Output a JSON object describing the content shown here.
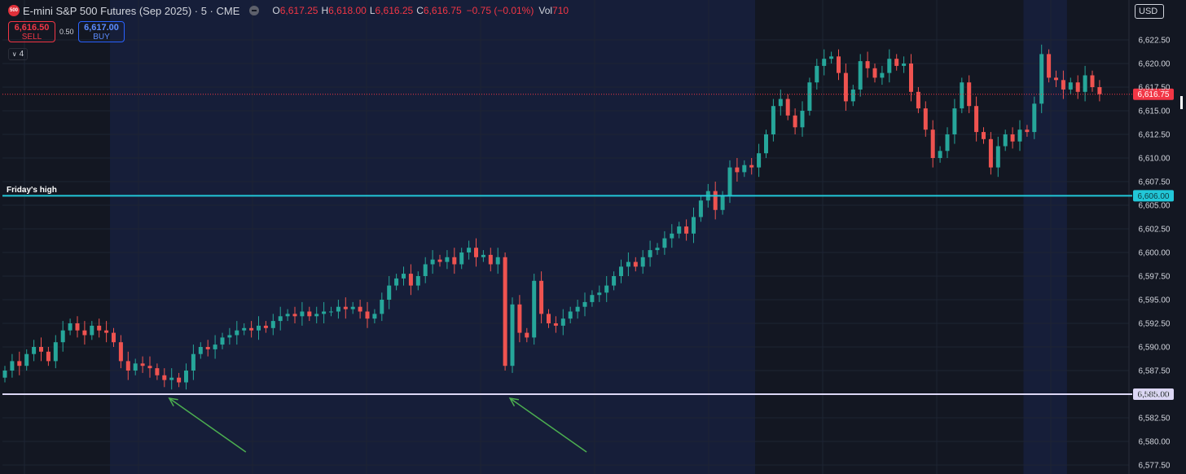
{
  "header": {
    "logo_text": "500",
    "title": "E-mini S&P 500 Futures (Sep 2025) · 5 · CME",
    "ohlc": {
      "open_label": "O",
      "open": "6,617.25",
      "high_label": "H",
      "high": "6,618.00",
      "low_label": "L",
      "low": "6,616.25",
      "close_label": "C",
      "close": "6,616.75",
      "change": "−0.75 (−0.01%)",
      "vol_label": "Vol",
      "vol": "710"
    }
  },
  "trade": {
    "sell_price": "6,616.50",
    "sell_label": "SELL",
    "spread": "0.50",
    "buy_price": "6,617.00",
    "buy_label": "BUY"
  },
  "indicator_count": "4",
  "currency": "USD",
  "colors": {
    "background": "#131722",
    "session_band": "#161e39",
    "up": "#26a69a",
    "down": "#ef5350",
    "friday_high_line": "#22c7d8",
    "support_line": "#dcd7f5",
    "arrow": "#4caf50",
    "last_price": "#f23645"
  },
  "chart_data": {
    "type": "candlestick",
    "yaxis": {
      "range": [
        6576.5,
        6624.5
      ],
      "ticks": [
        "6,622.50",
        "6,620.00",
        "6,617.50",
        "6,615.00",
        "6,612.50",
        "6,610.00",
        "6,607.50",
        "6,605.00",
        "6,602.50",
        "6,600.00",
        "6,597.50",
        "6,595.00",
        "6,592.50",
        "6,590.00",
        "6,587.50",
        "6,585.00",
        "6,582.50",
        "6,580.00",
        "6,577.50"
      ]
    },
    "horizontal_lines": [
      {
        "label": "Friday's high",
        "value": 6606.0,
        "tag": "6,606.00"
      },
      {
        "label": "",
        "value": 6585.0,
        "tag": "6,585.00"
      }
    ],
    "last_price": {
      "value": 6616.75,
      "tag": "6,616.75"
    },
    "closes": [
      6587.5,
      6588.5,
      6588.0,
      6589.25,
      6590.0,
      6589.5,
      6588.5,
      6590.5,
      6591.75,
      6592.5,
      6591.75,
      6591.25,
      6592.25,
      6591.75,
      6591.5,
      6590.5,
      6588.5,
      6587.5,
      6588.25,
      6588.0,
      6587.75,
      6587.0,
      6586.5,
      6586.75,
      6586.25,
      6587.5,
      6589.25,
      6590.0,
      6589.75,
      6590.25,
      6591.0,
      6591.25,
      6591.75,
      6592.0,
      6591.75,
      6592.25,
      6592.0,
      6592.75,
      6593.25,
      6593.5,
      6593.25,
      6593.75,
      6593.25,
      6593.5,
      6593.75,
      6593.75,
      6594.25,
      6594.0,
      6594.25,
      6593.75,
      6593.0,
      6593.5,
      6595.0,
      6596.5,
      6597.25,
      6597.75,
      6596.5,
      6597.5,
      6598.75,
      6599.25,
      6599.0,
      6599.5,
      6598.75,
      6600.0,
      6600.5,
      6599.5,
      6599.75,
      6598.75,
      6599.5,
      6588.0,
      6594.5,
      6591.5,
      6591.0,
      6597.0,
      6593.5,
      6592.5,
      6592.25,
      6593.0,
      6593.75,
      6594.25,
      6594.75,
      6595.5,
      6595.75,
      6596.5,
      6597.5,
      6598.5,
      6599.0,
      6598.5,
      6599.5,
      6600.25,
      6600.5,
      6601.5,
      6602.0,
      6602.75,
      6602.0,
      6603.75,
      6605.5,
      6606.5,
      6604.5,
      6606.0,
      6609.0,
      6608.5,
      6609.25,
      6609.0,
      6610.5,
      6612.5,
      6615.5,
      6616.25,
      6614.5,
      6613.25,
      6615.0,
      6618.0,
      6619.75,
      6620.5,
      6620.75,
      6619.0,
      6616.0,
      6617.25,
      6620.25,
      6619.5,
      6618.5,
      6619.0,
      6620.5,
      6619.75,
      6620.0,
      6617.0,
      6615.25,
      6613.0,
      6610.0,
      6610.75,
      6612.5,
      6615.25,
      6618.0,
      6615.5,
      6612.75,
      6612.0,
      6609.0,
      6611.25,
      6612.5,
      6611.75,
      6613.0,
      6612.75,
      6615.75,
      6621.0,
      6618.5,
      6618.25,
      6617.25,
      6618.0,
      6617.0,
      6618.75,
      6617.5,
      6616.75
    ],
    "sessions": [
      {
        "from_bar": 15,
        "to_bar": 103,
        "shaded": true
      },
      {
        "from_bar": 104,
        "to_bar": 140,
        "shaded": false
      },
      {
        "from_bar": 141,
        "to_bar": 146,
        "shaded": true
      }
    ],
    "annotations": [
      {
        "type": "arrow",
        "target_bar": 22,
        "target_value": 6585.0
      },
      {
        "type": "arrow",
        "target_bar": 69,
        "target_value": 6585.0
      }
    ]
  }
}
